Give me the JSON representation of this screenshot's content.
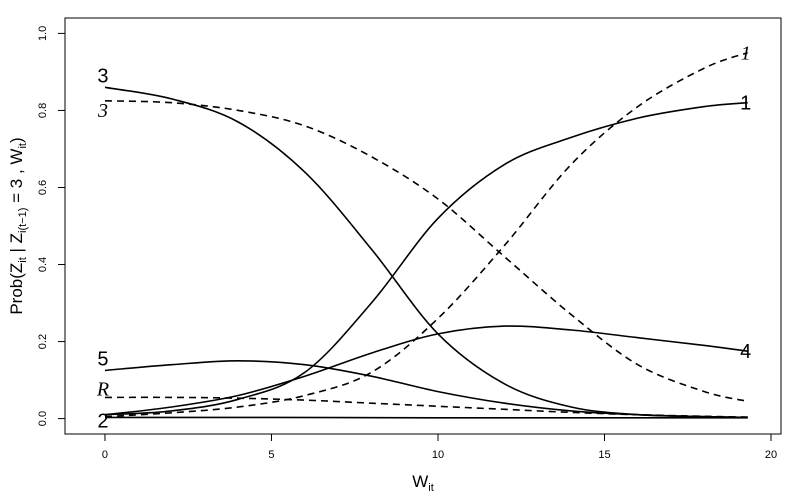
{
  "chart_data": {
    "type": "line",
    "xlim": [
      -1.2,
      20.3
    ],
    "ylim": [
      -0.04,
      1.04
    ],
    "x_ticks": [
      0,
      5,
      10,
      15,
      20
    ],
    "y_ticks": [
      0.0,
      0.2,
      0.4,
      0.6,
      0.8,
      1.0
    ],
    "x_tick_labels": [
      "0",
      "5",
      "10",
      "15",
      "20"
    ],
    "y_tick_labels": [
      "0.0",
      "0.2",
      "0.4",
      "0.6",
      "0.8",
      "1.0"
    ],
    "xlabel": {
      "main": "W",
      "sub": "it"
    },
    "ylabel": {
      "p1": "Prob(Z",
      "s1": "it",
      "p2": " | Z",
      "s2": "i(t−1)",
      "p3": " = 3 , W",
      "s3": "it",
      "p4": ")"
    },
    "grid": false,
    "series": [
      {
        "label": "3",
        "style": "solid",
        "label_at": "start",
        "x": [
          0,
          2,
          4,
          6,
          8,
          10,
          12,
          14,
          16,
          18,
          19.3
        ],
        "y": [
          0.86,
          0.83,
          0.77,
          0.64,
          0.44,
          0.22,
          0.09,
          0.03,
          0.01,
          0.005,
          0.003
        ]
      },
      {
        "label": "1",
        "style": "solid",
        "label_at": "end",
        "x": [
          0,
          2,
          4,
          6,
          8,
          10,
          12,
          14,
          16,
          18,
          19.3
        ],
        "y": [
          0.01,
          0.02,
          0.05,
          0.12,
          0.3,
          0.52,
          0.66,
          0.73,
          0.78,
          0.81,
          0.82
        ]
      },
      {
        "label": "4",
        "style": "solid",
        "label_at": "end",
        "x": [
          0,
          2,
          4,
          6,
          8,
          10,
          12,
          14,
          16,
          18,
          19.3
        ],
        "y": [
          0.01,
          0.03,
          0.06,
          0.11,
          0.17,
          0.22,
          0.24,
          0.23,
          0.21,
          0.19,
          0.175
        ]
      },
      {
        "label": "5",
        "style": "solid",
        "label_at": "start",
        "x": [
          0,
          2,
          4,
          6,
          8,
          10,
          12,
          14,
          16,
          18,
          19.3
        ],
        "y": [
          0.125,
          0.14,
          0.15,
          0.14,
          0.11,
          0.07,
          0.04,
          0.02,
          0.01,
          0.005,
          0.003
        ]
      },
      {
        "label": "2",
        "style": "solid",
        "label_at": "start",
        "x": [
          0,
          5,
          10,
          15,
          19.3
        ],
        "y": [
          0.003,
          0.003,
          0.002,
          0.002,
          0.002
        ]
      },
      {
        "label": "3",
        "style": "dashed",
        "label_at": "start",
        "x": [
          0,
          2,
          4,
          6,
          8,
          10,
          12,
          14,
          16,
          18,
          19.3
        ],
        "y": [
          0.825,
          0.82,
          0.8,
          0.76,
          0.68,
          0.57,
          0.42,
          0.27,
          0.14,
          0.07,
          0.045
        ]
      },
      {
        "label": "1",
        "style": "dashed",
        "label_at": "end",
        "x": [
          0,
          2,
          4,
          6,
          8,
          10,
          12,
          14,
          16,
          18,
          19.3
        ],
        "y": [
          0.005,
          0.015,
          0.03,
          0.06,
          0.12,
          0.26,
          0.45,
          0.66,
          0.81,
          0.91,
          0.95
        ]
      },
      {
        "label": "R",
        "style": "dashed",
        "label_at": "start",
        "x": [
          0,
          2,
          4,
          6,
          8,
          10,
          12,
          14,
          16,
          18,
          19.3
        ],
        "y": [
          0.055,
          0.055,
          0.053,
          0.048,
          0.04,
          0.032,
          0.024,
          0.016,
          0.01,
          0.006,
          0.004
        ]
      }
    ]
  }
}
